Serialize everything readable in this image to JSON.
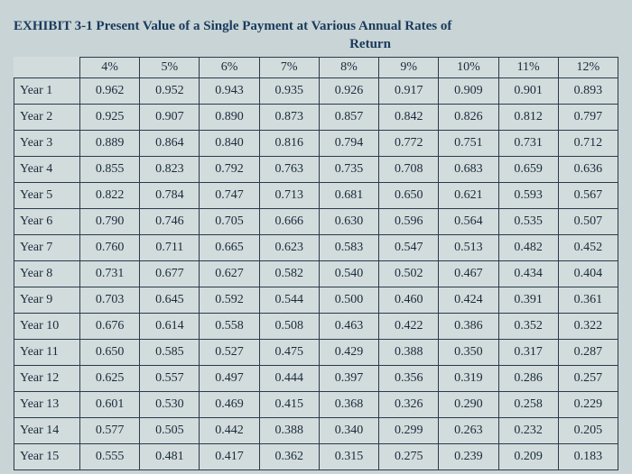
{
  "title_line1": "EXHIBIT 3-1 Present Value of a Single Payment at Various Annual Rates of",
  "title_line2": "Return",
  "table": {
    "columns": [
      "4%",
      "5%",
      "6%",
      "7%",
      "8%",
      "9%",
      "10%",
      "11%",
      "12%"
    ],
    "row_labels": [
      "Year 1",
      "Year 2",
      "Year 3",
      "Year 4",
      "Year 5",
      "Year 6",
      "Year 7",
      "Year 8",
      "Year 9",
      "Year 10",
      "Year 11",
      "Year 12",
      "Year 13",
      "Year 14",
      "Year 15"
    ],
    "rows": [
      [
        "0.962",
        "0.952",
        "0.943",
        "0.935",
        "0.926",
        "0.917",
        "0.909",
        "0.901",
        "0.893"
      ],
      [
        "0.925",
        "0.907",
        "0.890",
        "0.873",
        "0.857",
        "0.842",
        "0.826",
        "0.812",
        "0.797"
      ],
      [
        "0.889",
        "0.864",
        "0.840",
        "0.816",
        "0.794",
        "0.772",
        "0.751",
        "0.731",
        "0.712"
      ],
      [
        "0.855",
        "0.823",
        "0.792",
        "0.763",
        "0.735",
        "0.708",
        "0.683",
        "0.659",
        "0.636"
      ],
      [
        "0.822",
        "0.784",
        "0.747",
        "0.713",
        "0.681",
        "0.650",
        "0.621",
        "0.593",
        "0.567"
      ],
      [
        "0.790",
        "0.746",
        "0.705",
        "0.666",
        "0.630",
        "0.596",
        "0.564",
        "0.535",
        "0.507"
      ],
      [
        "0.760",
        "0.711",
        "0.665",
        "0.623",
        "0.583",
        "0.547",
        "0.513",
        "0.482",
        "0.452"
      ],
      [
        "0.731",
        "0.677",
        "0.627",
        "0.582",
        "0.540",
        "0.502",
        "0.467",
        "0.434",
        "0.404"
      ],
      [
        "0.703",
        "0.645",
        "0.592",
        "0.544",
        "0.500",
        "0.460",
        "0.424",
        "0.391",
        "0.361"
      ],
      [
        "0.676",
        "0.614",
        "0.558",
        "0.508",
        "0.463",
        "0.422",
        "0.386",
        "0.352",
        "0.322"
      ],
      [
        "0.650",
        "0.585",
        "0.527",
        "0.475",
        "0.429",
        "0.388",
        "0.350",
        "0.317",
        "0.287"
      ],
      [
        "0.625",
        "0.557",
        "0.497",
        "0.444",
        "0.397",
        "0.356",
        "0.319",
        "0.286",
        "0.257"
      ],
      [
        "0.601",
        "0.530",
        "0.469",
        "0.415",
        "0.368",
        "0.326",
        "0.290",
        "0.258",
        "0.229"
      ],
      [
        "0.577",
        "0.505",
        "0.442",
        "0.388",
        "0.340",
        "0.299",
        "0.263",
        "0.232",
        "0.205"
      ],
      [
        "0.555",
        "0.481",
        "0.417",
        "0.362",
        "0.315",
        "0.275",
        "0.239",
        "0.209",
        "0.183"
      ]
    ]
  },
  "colors": {
    "page_bg": "#c8d4d6",
    "cell_bg": "#d2dcdd",
    "border": "#2a3a4a",
    "title": "#1a3a5c",
    "text": "#1a2a3a"
  }
}
